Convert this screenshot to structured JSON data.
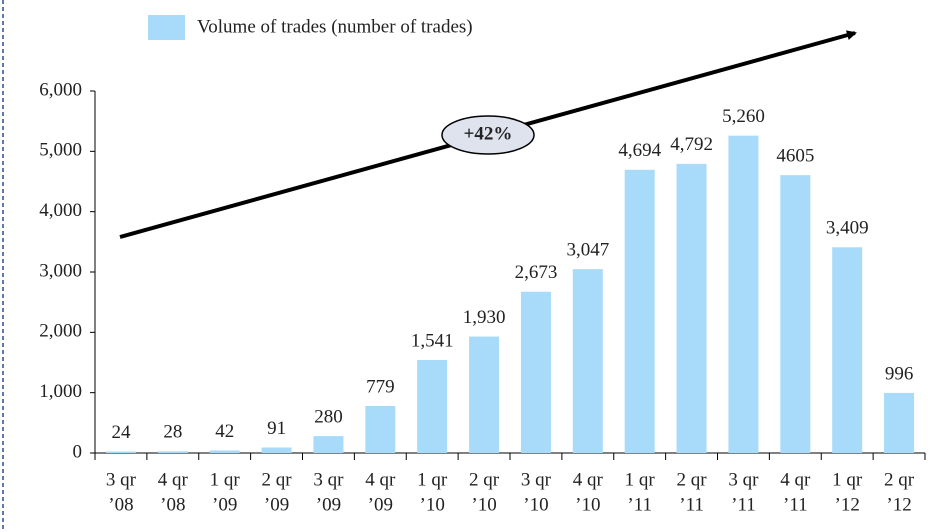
{
  "chart_data": {
    "type": "bar",
    "legend": "Volume of trades (number of trades)",
    "annotation": "+42%",
    "color": "#a8daf9",
    "categories": [
      [
        "3 qr",
        "’08"
      ],
      [
        "4 qr",
        "’08"
      ],
      [
        "1 qr",
        "’09"
      ],
      [
        "2 qr",
        "’09"
      ],
      [
        "3 qr",
        "’09"
      ],
      [
        "4 qr",
        "’09"
      ],
      [
        "1 qr",
        "’10"
      ],
      [
        "2 qr",
        "’10"
      ],
      [
        "3 qr",
        "’10"
      ],
      [
        "4 qr",
        "’10"
      ],
      [
        "1 qr",
        "’11"
      ],
      [
        "2 qr",
        "’11"
      ],
      [
        "3 qr",
        "’11"
      ],
      [
        "4 qr",
        "’11"
      ],
      [
        "1 qr",
        "’12"
      ],
      [
        "2 qr",
        "’12"
      ]
    ],
    "values": [
      24,
      28,
      42,
      91,
      280,
      779,
      1541,
      1930,
      2673,
      3047,
      4694,
      4792,
      5260,
      4605,
      3409,
      996
    ],
    "value_labels": [
      "24",
      "28",
      "42",
      "91",
      "280",
      "779",
      "1,541",
      "1,930",
      "2,673",
      "3,047",
      "4,694",
      "4,792",
      "5,260",
      "4605",
      "3,409",
      "996"
    ],
    "ylim": [
      0,
      6000
    ],
    "yticks": [
      0,
      {
        "value": 1000,
        "label": "1,000"
      },
      {
        "value": 2000,
        "label": "2,000"
      },
      {
        "value": 3000,
        "label": "3,000"
      },
      {
        "value": 4000,
        "label": "4,000"
      },
      {
        "value": 5000,
        "label": "5,000"
      },
      {
        "value": 6000,
        "label": "6,000"
      }
    ]
  }
}
